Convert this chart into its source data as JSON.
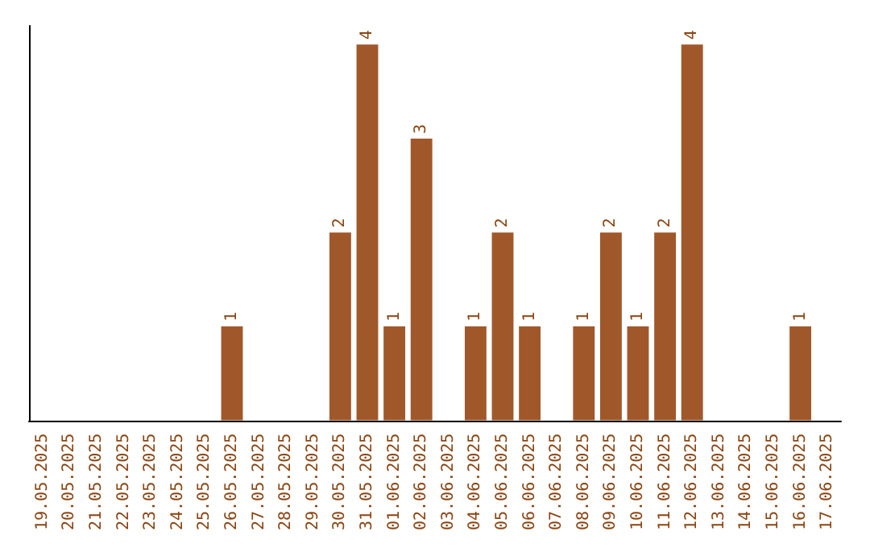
{
  "chart_data": {
    "type": "bar",
    "categories": [
      "19.05.2025",
      "20.05.2025",
      "21.05.2025",
      "22.05.2025",
      "23.05.2025",
      "24.05.2025",
      "25.05.2025",
      "26.05.2025",
      "27.05.2025",
      "28.05.2025",
      "29.05.2025",
      "30.05.2025",
      "31.05.2025",
      "01.06.2025",
      "02.06.2025",
      "03.06.2025",
      "04.06.2025",
      "05.06.2025",
      "06.06.2025",
      "07.06.2025",
      "08.06.2025",
      "09.06.2025",
      "10.06.2025",
      "11.06.2025",
      "12.06.2025",
      "13.06.2025",
      "14.06.2025",
      "15.06.2025",
      "16.06.2025",
      "17.06.2025"
    ],
    "values": [
      0,
      0,
      0,
      0,
      0,
      0,
      0,
      1,
      0,
      0,
      0,
      2,
      4,
      1,
      3,
      0,
      1,
      2,
      1,
      0,
      1,
      2,
      1,
      2,
      4,
      0,
      0,
      0,
      1,
      0
    ],
    "value_labels": [
      null,
      null,
      null,
      null,
      null,
      null,
      null,
      "1",
      null,
      null,
      null,
      "2",
      "4",
      "1",
      "3",
      null,
      "1",
      "2",
      "1",
      null,
      "1",
      "2",
      "1",
      "2",
      "4",
      null,
      null,
      null,
      "1",
      null
    ],
    "color": "#a0582a",
    "ylim": [
      0,
      4.2
    ],
    "tick_labels": "x",
    "grid": false
  }
}
